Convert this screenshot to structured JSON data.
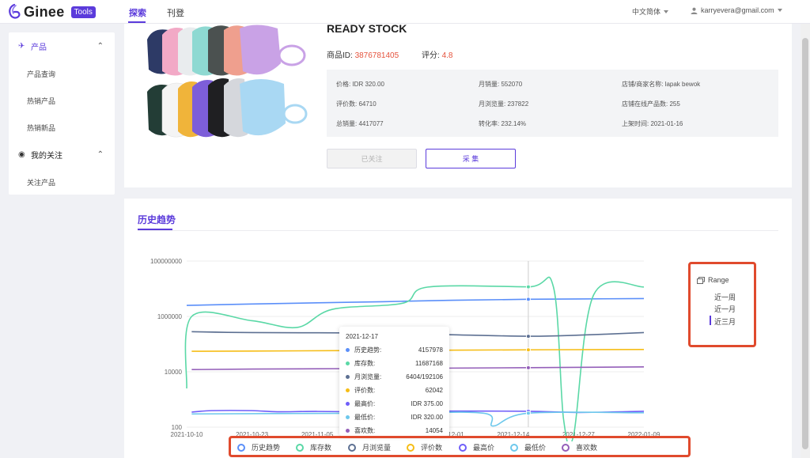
{
  "header": {
    "logo_text": "Ginee",
    "logo_badge": "Tools",
    "tabs": [
      {
        "label": "探索",
        "active": true
      },
      {
        "label": "刊登",
        "active": false
      }
    ],
    "language": "中文简体",
    "user_email": "karryevera@gmail.com"
  },
  "sidebar": {
    "groups": [
      {
        "label": "产品",
        "icon": "product-icon",
        "expanded": true,
        "items": [
          "产品查询",
          "热销产品",
          "热销新品"
        ]
      },
      {
        "label": "我的关注",
        "icon": "follow-icon",
        "expanded": true,
        "items": [
          "关注产品"
        ]
      }
    ]
  },
  "product": {
    "title": "READY STOCK",
    "id_label": "商品ID:",
    "id_value": "3876781405",
    "rating_label": "评分:",
    "rating_value": "4.8",
    "stats": [
      [
        "价格: IDR 320.00",
        "月销量: 552070",
        "店铺/商家名称: lapak bewok"
      ],
      [
        "评价数: 64710",
        "月浏览量: 237822",
        "店铺在线产品数: 255"
      ],
      [
        "总销量: 4417077",
        "转化率: 232.14%",
        "上架时间: 2021-01-16"
      ]
    ],
    "btn_followed": "已关注",
    "btn_collect": "采 集"
  },
  "history": {
    "title": "历史趋势",
    "range": {
      "title": "Range",
      "options": [
        "近一周",
        "近一月",
        "近三月"
      ],
      "selected": "近三月"
    },
    "tooltip": {
      "date": "2021-12-17",
      "rows": [
        {
          "label": "历史趋势:",
          "value": "4157978",
          "color": "#5b8ff9"
        },
        {
          "label": "库存数:",
          "value": "11687168",
          "color": "#5ad8a6"
        },
        {
          "label": "月浏览量:",
          "value": "6404/192106",
          "color": "#5d7092"
        },
        {
          "label": "评价数:",
          "value": "62042",
          "color": "#f6bd16"
        },
        {
          "label": "最高价:",
          "value": "IDR 375.00",
          "color": "#6f5ef9"
        },
        {
          "label": "最低价:",
          "value": "IDR 320.00",
          "color": "#6dc8ec"
        },
        {
          "label": "喜欢数:",
          "value": "14054",
          "color": "#945fb9"
        }
      ]
    },
    "legend": [
      {
        "label": "历史趋势",
        "color": "#5b8ff9"
      },
      {
        "label": "库存数",
        "color": "#5ad8a6"
      },
      {
        "label": "月浏览量",
        "color": "#5d7092"
      },
      {
        "label": "评价数",
        "color": "#f6bd16"
      },
      {
        "label": "最高价",
        "color": "#6f5ef9"
      },
      {
        "label": "最低价",
        "color": "#6dc8ec"
      },
      {
        "label": "喜欢数",
        "color": "#945fb9"
      }
    ]
  },
  "chart_data": {
    "type": "line",
    "yscale": "log",
    "ylim": [
      100,
      100000000
    ],
    "yticks": [
      "100000000",
      "1000000",
      "10000",
      "100"
    ],
    "xticks": [
      "2021-10-10",
      "2021-10-23",
      "2021-11-05",
      "2021-11-18",
      "2021-12-01",
      "2021-12-14",
      "2021-12-27",
      "2022-01-09"
    ],
    "xlabel": "",
    "ylabel": "",
    "series": [
      {
        "name": "历史趋势",
        "color": "#5b8ff9",
        "points": [
          [
            "2021-10-10",
            2500000
          ],
          [
            "2021-10-23",
            2800000
          ],
          [
            "2021-11-05",
            3100000
          ],
          [
            "2021-11-18",
            3400000
          ],
          [
            "2021-12-01",
            3800000
          ],
          [
            "2021-12-17",
            4157978
          ],
          [
            "2022-01-09",
            4400000
          ]
        ]
      },
      {
        "name": "库存数",
        "color": "#5ad8a6",
        "points": [
          [
            "2021-10-10",
            2500
          ],
          [
            "2021-10-11",
            1000000
          ],
          [
            "2021-10-23",
            700000
          ],
          [
            "2021-11-01",
            400000
          ],
          [
            "2021-11-08",
            1800000
          ],
          [
            "2021-11-22",
            3000000
          ],
          [
            "2021-11-27",
            11500000
          ],
          [
            "2021-12-17",
            11687168
          ],
          [
            "2021-12-22",
            11500000
          ],
          [
            "2021-12-24",
            200
          ],
          [
            "2021-12-26",
            50
          ],
          [
            "2021-12-30",
            6000000
          ],
          [
            "2022-01-09",
            11600000
          ]
        ]
      },
      {
        "name": "月浏览量",
        "color": "#5d7092",
        "points": [
          [
            "2021-10-11",
            280000
          ],
          [
            "2021-10-23",
            260000
          ],
          [
            "2021-11-18",
            250000
          ],
          [
            "2021-12-01",
            220000
          ],
          [
            "2021-12-17",
            192106
          ],
          [
            "2021-12-27",
            210000
          ],
          [
            "2022-01-09",
            260000
          ]
        ]
      },
      {
        "name": "评价数",
        "color": "#f6bd16",
        "points": [
          [
            "2021-10-11",
            55000
          ],
          [
            "2021-10-23",
            56000
          ],
          [
            "2021-11-18",
            59000
          ],
          [
            "2021-12-17",
            62042
          ],
          [
            "2022-01-09",
            64000
          ]
        ]
      },
      {
        "name": "最高价",
        "color": "#6f5ef9",
        "points": [
          [
            "2021-10-11",
            350
          ],
          [
            "2021-10-15",
            395
          ],
          [
            "2021-10-23",
            395
          ],
          [
            "2021-10-28",
            360
          ],
          [
            "2021-11-05",
            370
          ],
          [
            "2021-11-18",
            355
          ],
          [
            "2021-12-01",
            380
          ],
          [
            "2021-12-17",
            375
          ],
          [
            "2021-12-27",
            340
          ],
          [
            "2022-01-09",
            375
          ]
        ]
      },
      {
        "name": "最低价",
        "color": "#6dc8ec",
        "points": [
          [
            "2021-10-11",
            300
          ],
          [
            "2021-11-18",
            320
          ],
          [
            "2021-12-08",
            320
          ],
          [
            "2021-12-10",
            110
          ],
          [
            "2021-12-17",
            320
          ],
          [
            "2022-01-09",
            330
          ]
        ]
      },
      {
        "name": "喜欢数",
        "color": "#945fb9",
        "points": [
          [
            "2021-10-11",
            12000
          ],
          [
            "2021-10-23",
            12500
          ],
          [
            "2021-11-18",
            13200
          ],
          [
            "2021-12-17",
            14054
          ],
          [
            "2022-01-09",
            15000
          ]
        ]
      }
    ],
    "hover_date": "2021-12-17",
    "legend_position": "bottom",
    "grid": true
  },
  "colors": {
    "accent": "#5b3bdb",
    "price": "#e5533d",
    "highlight_box": "#e04a2d"
  }
}
